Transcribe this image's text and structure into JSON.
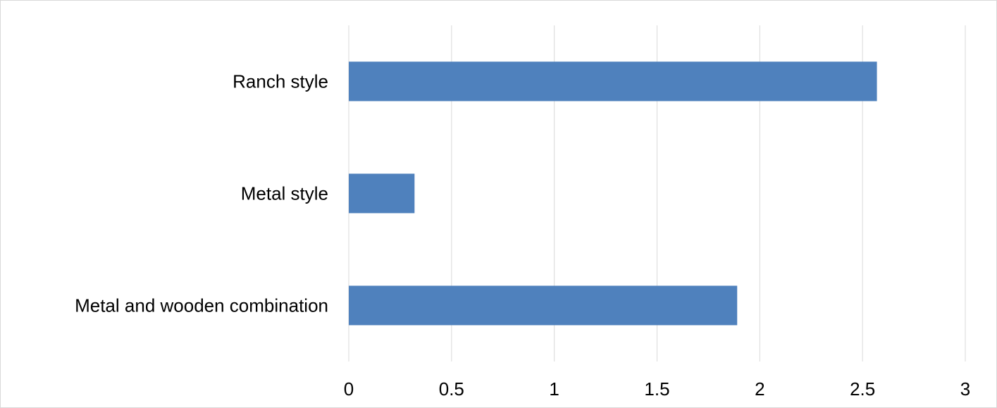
{
  "chart_data": {
    "type": "bar",
    "orientation": "horizontal",
    "title": "",
    "xlabel": "",
    "ylabel": "",
    "categories": [
      "Ranch style",
      "Metal style",
      "Metal and wooden combination"
    ],
    "values": [
      2.57,
      0.32,
      1.89
    ],
    "xlim": [
      0,
      3
    ],
    "x_ticks": [
      "0",
      "0.5",
      "1",
      "1.5",
      "2",
      "2.5",
      "3"
    ],
    "grid": "vertical",
    "legend": "none",
    "bar_color": "#4f81bd",
    "grid_color": "#d9d9d9"
  }
}
